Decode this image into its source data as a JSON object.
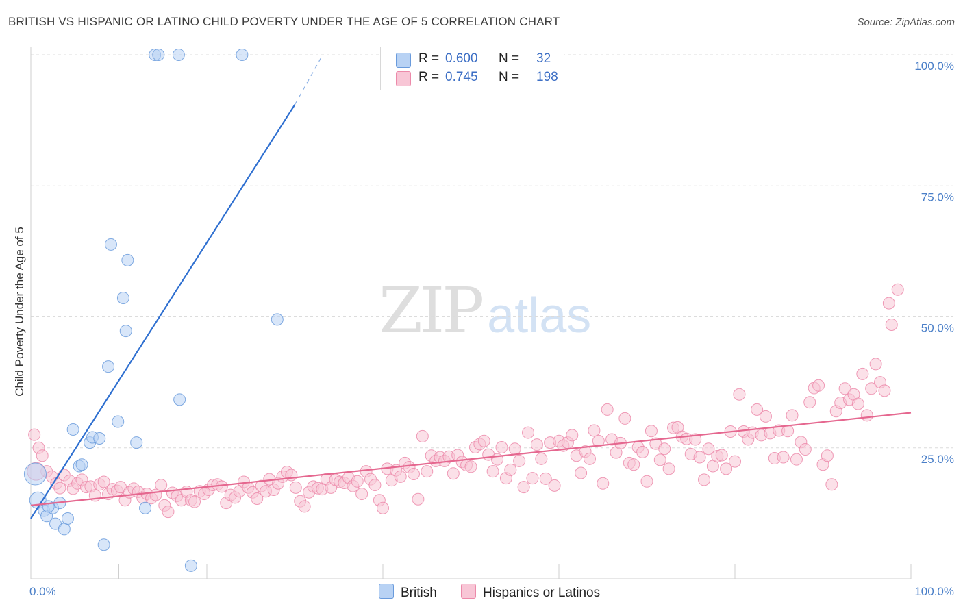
{
  "title": "BRITISH VS HISPANIC OR LATINO CHILD POVERTY UNDER THE AGE OF 5 CORRELATION CHART",
  "source": "Source: ZipAtlas.com",
  "watermark": {
    "zip": "ZIP",
    "atlas": "atlas"
  },
  "colors": {
    "british_fill": "#b8d2f4",
    "british_stroke": "#6a9bdc",
    "british_line": "#2e6fd0",
    "hispanic_fill": "#f8c6d6",
    "hispanic_stroke": "#ec8aaa",
    "hispanic_line": "#e5678f",
    "tick_text": "#4a7fc8",
    "grid": "#dcdcdc"
  },
  "legend": {
    "rows": [
      {
        "r_label": "R =",
        "r_value": "0.600",
        "n_label": "N =",
        "n_value": "32"
      },
      {
        "r_label": "R =",
        "r_value": "0.745",
        "n_label": "N =",
        "n_value": "198"
      }
    ]
  },
  "bottom_legend": {
    "british": "British",
    "hispanic": "Hispanics or Latinos"
  },
  "chart_data": {
    "type": "scatter",
    "ylabel": "Child Poverty Under the Age of 5",
    "xlabel": "",
    "xlim": [
      0,
      100
    ],
    "ylim": [
      0,
      100
    ],
    "x_tick_labels": [
      "0.0%",
      "100.0%"
    ],
    "y_tick_labels": [
      "25.0%",
      "50.0%",
      "75.0%",
      "100.0%"
    ],
    "y_ticks": [
      25,
      50,
      75,
      100
    ],
    "grid": true,
    "series": [
      {
        "name": "British",
        "points": [
          [
            0.5,
            20.0
          ],
          [
            0.8,
            15.0
          ],
          [
            1.5,
            13.0
          ],
          [
            1.8,
            12.0
          ],
          [
            2.5,
            13.5
          ],
          [
            2.8,
            10.5
          ],
          [
            3.3,
            14.5
          ],
          [
            3.8,
            9.5
          ],
          [
            4.2,
            11.5
          ],
          [
            4.8,
            28.5
          ],
          [
            5.5,
            21.5
          ],
          [
            5.8,
            21.8
          ],
          [
            6.7,
            26.0
          ],
          [
            7.0,
            27.0
          ],
          [
            7.8,
            26.8
          ],
          [
            8.3,
            6.5
          ],
          [
            8.8,
            40.5
          ],
          [
            9.1,
            63.8
          ],
          [
            9.9,
            30.0
          ],
          [
            10.5,
            53.6
          ],
          [
            10.8,
            47.3
          ],
          [
            11.0,
            60.8
          ],
          [
            12.0,
            26.0
          ],
          [
            13.0,
            13.5
          ],
          [
            14.1,
            100.0
          ],
          [
            14.5,
            100.0
          ],
          [
            16.9,
            34.2
          ],
          [
            16.8,
            100.0
          ],
          [
            18.2,
            2.5
          ],
          [
            24.0,
            100.0
          ],
          [
            28.0,
            49.5
          ],
          [
            2.0,
            13.8
          ]
        ],
        "trend": {
          "x0": 0.0,
          "y0": 11.5,
          "x1": 30.0,
          "y1": 90.5,
          "dashed_to": [
            33.0,
            99.5
          ]
        }
      },
      {
        "name": "Hispanics or Latinos",
        "points": [
          [
            0.4,
            27.5
          ],
          [
            0.9,
            25.0
          ],
          [
            1.3,
            23.5
          ],
          [
            1.8,
            20.5
          ],
          [
            2.4,
            19.5
          ],
          [
            2.9,
            18.2
          ],
          [
            3.3,
            17.3
          ],
          [
            3.8,
            19.8
          ],
          [
            4.4,
            18.7
          ],
          [
            4.8,
            17.2
          ],
          [
            5.3,
            18.2
          ],
          [
            5.8,
            18.9
          ],
          [
            6.3,
            17.5
          ],
          [
            6.8,
            17.6
          ],
          [
            7.3,
            15.9
          ],
          [
            7.8,
            18.0
          ],
          [
            8.3,
            18.5
          ],
          [
            8.8,
            16.2
          ],
          [
            9.3,
            17.1
          ],
          [
            9.8,
            16.8
          ],
          [
            10.2,
            17.5
          ],
          [
            10.7,
            15.0
          ],
          [
            11.2,
            16.5
          ],
          [
            11.7,
            17.2
          ],
          [
            12.2,
            16.6
          ],
          [
            12.7,
            15.5
          ],
          [
            13.2,
            16.2
          ],
          [
            13.7,
            15.4
          ],
          [
            14.2,
            16.0
          ],
          [
            14.8,
            17.9
          ],
          [
            15.2,
            14.0
          ],
          [
            15.6,
            12.8
          ],
          [
            16.1,
            16.4
          ],
          [
            16.6,
            15.8
          ],
          [
            17.1,
            15.0
          ],
          [
            17.7,
            16.6
          ],
          [
            18.2,
            15.0
          ],
          [
            18.6,
            14.7
          ],
          [
            19.2,
            16.7
          ],
          [
            19.7,
            16.2
          ],
          [
            20.2,
            17.0
          ],
          [
            20.7,
            17.9
          ],
          [
            21.2,
            18.0
          ],
          [
            21.7,
            17.6
          ],
          [
            22.2,
            14.5
          ],
          [
            22.7,
            16.0
          ],
          [
            23.2,
            15.5
          ],
          [
            23.7,
            16.7
          ],
          [
            24.2,
            18.5
          ],
          [
            24.7,
            17.4
          ],
          [
            25.2,
            16.5
          ],
          [
            25.7,
            15.3
          ],
          [
            26.2,
            17.7
          ],
          [
            26.7,
            16.7
          ],
          [
            27.1,
            19.0
          ],
          [
            27.6,
            17.0
          ],
          [
            28.1,
            18.2
          ],
          [
            28.6,
            19.5
          ],
          [
            29.1,
            20.4
          ],
          [
            29.6,
            19.8
          ],
          [
            30.1,
            17.4
          ],
          [
            30.6,
            14.8
          ],
          [
            31.1,
            13.8
          ],
          [
            31.6,
            16.5
          ],
          [
            32.1,
            17.6
          ],
          [
            32.6,
            17.3
          ],
          [
            33.1,
            17.1
          ],
          [
            33.6,
            19.0
          ],
          [
            34.1,
            17.4
          ],
          [
            34.6,
            18.9
          ],
          [
            35.1,
            18.5
          ],
          [
            35.6,
            18.3
          ],
          [
            36.1,
            19.3
          ],
          [
            36.6,
            17.7
          ],
          [
            37.1,
            18.6
          ],
          [
            37.6,
            16.2
          ],
          [
            38.1,
            20.5
          ],
          [
            38.6,
            19.0
          ],
          [
            39.1,
            17.9
          ],
          [
            39.6,
            15.0
          ],
          [
            40.0,
            13.5
          ],
          [
            40.5,
            21.0
          ],
          [
            41.0,
            18.8
          ],
          [
            41.5,
            20.7
          ],
          [
            42.0,
            19.5
          ],
          [
            42.5,
            22.1
          ],
          [
            43.0,
            21.3
          ],
          [
            43.5,
            20.0
          ],
          [
            44.0,
            15.2
          ],
          [
            44.5,
            27.2
          ],
          [
            45.0,
            20.5
          ],
          [
            45.5,
            23.5
          ],
          [
            46.0,
            22.5
          ],
          [
            46.5,
            23.2
          ],
          [
            47.0,
            22.5
          ],
          [
            47.5,
            23.3
          ],
          [
            48.0,
            20.1
          ],
          [
            48.5,
            23.6
          ],
          [
            49.0,
            22.3
          ],
          [
            49.5,
            21.7
          ],
          [
            50.0,
            21.4
          ],
          [
            50.5,
            25.1
          ],
          [
            51.0,
            25.7
          ],
          [
            51.5,
            26.3
          ],
          [
            52.0,
            23.7
          ],
          [
            52.5,
            20.5
          ],
          [
            53.0,
            22.8
          ],
          [
            53.5,
            25.1
          ],
          [
            54.0,
            19.2
          ],
          [
            54.5,
            20.8
          ],
          [
            55.0,
            24.8
          ],
          [
            55.5,
            22.5
          ],
          [
            56.0,
            17.5
          ],
          [
            56.5,
            27.9
          ],
          [
            57.0,
            19.2
          ],
          [
            57.5,
            25.6
          ],
          [
            58.0,
            22.9
          ],
          [
            58.5,
            19.1
          ],
          [
            59.0,
            26.0
          ],
          [
            59.5,
            17.8
          ],
          [
            60.0,
            26.3
          ],
          [
            60.5,
            25.4
          ],
          [
            61.0,
            26.0
          ],
          [
            61.5,
            27.4
          ],
          [
            62.0,
            23.5
          ],
          [
            62.5,
            20.2
          ],
          [
            63.0,
            24.3
          ],
          [
            63.5,
            22.9
          ],
          [
            64.0,
            28.3
          ],
          [
            64.5,
            26.3
          ],
          [
            65.0,
            18.2
          ],
          [
            65.5,
            32.3
          ],
          [
            66.0,
            26.6
          ],
          [
            66.5,
            24.1
          ],
          [
            67.0,
            25.9
          ],
          [
            67.5,
            30.6
          ],
          [
            68.0,
            22.1
          ],
          [
            68.5,
            21.8
          ],
          [
            69.0,
            25.1
          ],
          [
            69.5,
            24.2
          ],
          [
            70.0,
            18.6
          ],
          [
            70.5,
            28.2
          ],
          [
            71.0,
            25.8
          ],
          [
            71.5,
            22.7
          ],
          [
            72.0,
            24.8
          ],
          [
            72.5,
            21.0
          ],
          [
            73.0,
            28.8
          ],
          [
            73.5,
            28.9
          ],
          [
            74.0,
            27.1
          ],
          [
            74.5,
            26.7
          ],
          [
            75.0,
            23.8
          ],
          [
            75.5,
            26.6
          ],
          [
            76.0,
            23.2
          ],
          [
            76.5,
            18.9
          ],
          [
            77.0,
            24.8
          ],
          [
            77.5,
            21.5
          ],
          [
            78.0,
            23.4
          ],
          [
            78.5,
            23.6
          ],
          [
            79.0,
            21.0
          ],
          [
            79.5,
            28.1
          ],
          [
            80.0,
            22.4
          ],
          [
            80.5,
            35.2
          ],
          [
            81.0,
            28.1
          ],
          [
            81.5,
            26.6
          ],
          [
            82.0,
            27.9
          ],
          [
            82.5,
            32.3
          ],
          [
            83.0,
            27.4
          ],
          [
            83.5,
            31.0
          ],
          [
            84.0,
            27.8
          ],
          [
            84.5,
            23.0
          ],
          [
            85.0,
            28.3
          ],
          [
            85.5,
            23.2
          ],
          [
            86.0,
            28.2
          ],
          [
            86.5,
            31.2
          ],
          [
            87.0,
            22.8
          ],
          [
            87.5,
            26.1
          ],
          [
            88.0,
            24.7
          ],
          [
            88.5,
            33.7
          ],
          [
            89.0,
            36.4
          ],
          [
            89.5,
            36.9
          ],
          [
            90.0,
            21.8
          ],
          [
            90.5,
            23.5
          ],
          [
            91.0,
            18.0
          ],
          [
            91.5,
            32.0
          ],
          [
            92.0,
            33.6
          ],
          [
            92.5,
            36.3
          ],
          [
            93.0,
            34.2
          ],
          [
            93.5,
            35.2
          ],
          [
            94.0,
            33.4
          ],
          [
            94.5,
            39.1
          ],
          [
            95.0,
            31.2
          ],
          [
            95.5,
            36.3
          ],
          [
            96.0,
            41.0
          ],
          [
            96.5,
            37.5
          ],
          [
            97.0,
            35.9
          ],
          [
            97.5,
            52.6
          ],
          [
            97.8,
            48.5
          ],
          [
            98.5,
            55.2
          ],
          [
            0.6,
            20.5
          ]
        ],
        "trend": {
          "x0": 0.0,
          "y0": 14.0,
          "x1": 100.0,
          "y1": 31.7
        }
      }
    ]
  }
}
